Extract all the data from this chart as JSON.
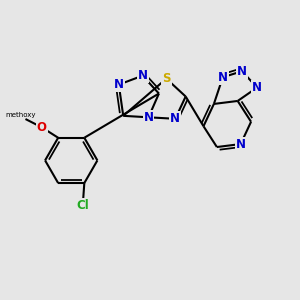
{
  "background_color": "#e6e6e6",
  "bond_color": "#000000",
  "atom_colors": {
    "N": "#0000cc",
    "S": "#ccaa00",
    "O": "#dd0000",
    "Cl": "#22aa22",
    "C": "#000000"
  },
  "font_size_atoms": 8.5,
  "bond_width": 1.5,
  "figsize": [
    3.0,
    3.0
  ],
  "dpi": 100
}
